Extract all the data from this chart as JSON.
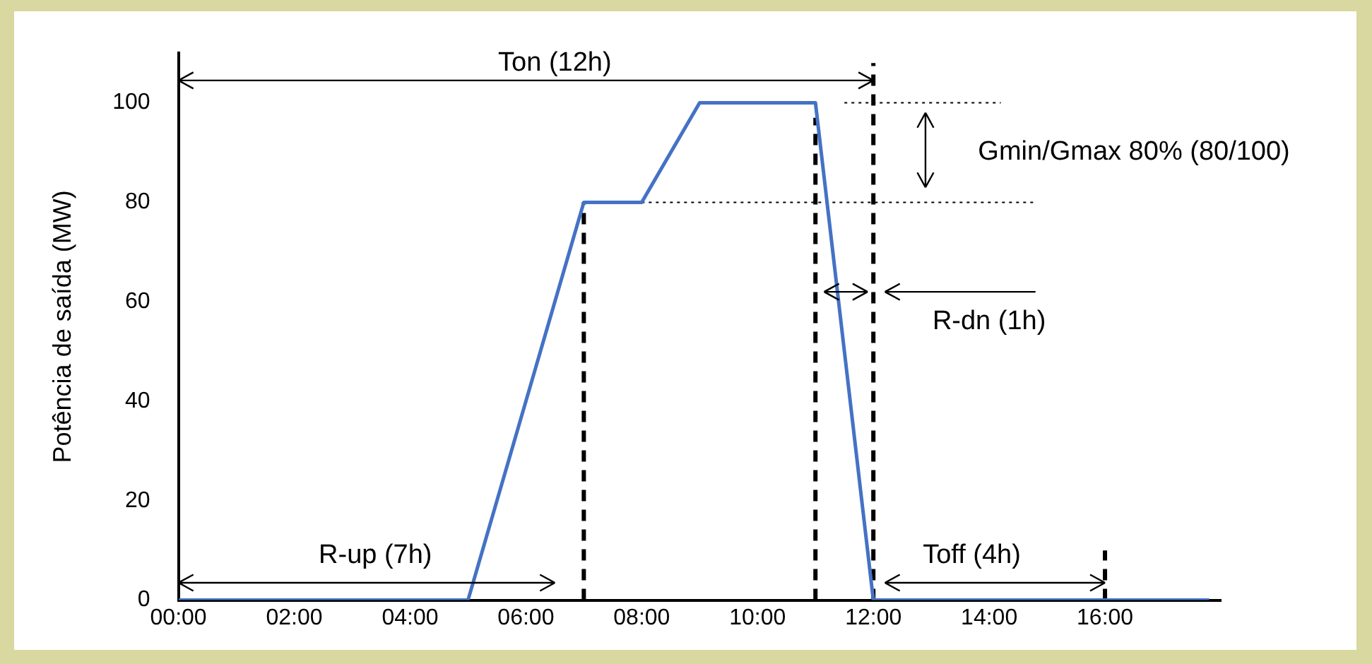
{
  "chart_data": {
    "type": "line",
    "ylabel": "Potência de saída (MW)",
    "xlim": [
      0,
      18
    ],
    "xticks": [
      {
        "value": 0,
        "label": "00:00"
      },
      {
        "value": 2,
        "label": "02:00"
      },
      {
        "value": 4,
        "label": "04:00"
      },
      {
        "value": 6,
        "label": "06:00"
      },
      {
        "value": 8,
        "label": "08:00"
      },
      {
        "value": 10,
        "label": "10:00"
      },
      {
        "value": 12,
        "label": "12:00"
      },
      {
        "value": 14,
        "label": "14:00"
      },
      {
        "value": 16,
        "label": "16:00"
      }
    ],
    "ylim": [
      0,
      110
    ],
    "yticks": [
      0,
      20,
      40,
      60,
      80,
      100
    ],
    "grid": false,
    "legend": false,
    "series": [
      {
        "color": "#4472c4",
        "line_style": "solid",
        "x": [
          0,
          5,
          7,
          8,
          9,
          11,
          12,
          17.8
        ],
        "values": [
          0,
          0,
          80,
          80,
          100,
          100,
          0,
          0
        ]
      },
      {
        "color": "#000000",
        "line_style": "dashed",
        "x": [
          7,
          7
        ],
        "values": [
          0,
          80
        ]
      },
      {
        "color": "#000000",
        "line_style": "dashed",
        "x": [
          11,
          11
        ],
        "values": [
          0,
          97
        ]
      },
      {
        "color": "#000000",
        "line_style": "dashed",
        "x": [
          12,
          12
        ],
        "values": [
          0,
          108
        ]
      },
      {
        "color": "#000000",
        "line_style": "dashed",
        "x": [
          16,
          16
        ],
        "values": [
          0,
          10
        ]
      },
      {
        "color": "#000000",
        "line_style": "dotted",
        "x": [
          11.5,
          14.2
        ],
        "values": [
          100,
          100
        ]
      },
      {
        "color": "#000000",
        "line_style": "dotted",
        "x": [
          8,
          14.8
        ],
        "values": [
          80,
          80
        ]
      }
    ],
    "annotations": [
      "Ton (12h)",
      "Gmin/Gmax 80% (80/100)",
      "R-dn (1h)",
      "R-up (7h)",
      "Toff (4h)"
    ]
  }
}
